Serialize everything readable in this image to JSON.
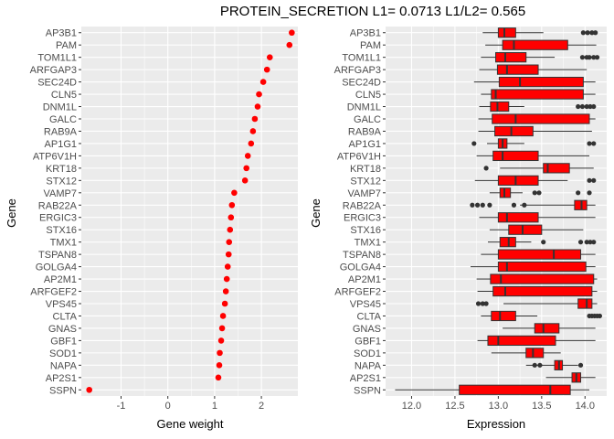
{
  "title": "PROTEIN_SECRETION L1= 0.0713 L1/L2= 0.565",
  "colors": {
    "panel": "#ebebeb",
    "grid_major": "#ffffff",
    "point": "#ff0000",
    "box_fill": "#ff0000",
    "line": "#333333",
    "outlier": "#333333"
  },
  "chart_data": [
    {
      "type": "scatter",
      "xlabel": "Gene weight",
      "ylabel": "Gene",
      "xlim": [
        -1.85,
        2.78
      ],
      "xticks": [
        -1,
        0,
        1,
        2
      ],
      "xtick_labels": [
        "-1",
        "0",
        "1",
        "2"
      ],
      "grid": true,
      "genes": [
        "AP3B1",
        "PAM",
        "TOM1L1",
        "ARFGAP3",
        "SEC24D",
        "CLN5",
        "DNM1L",
        "GALC",
        "RAB9A",
        "AP1G1",
        "ATP6V1H",
        "KRT18",
        "STX12",
        "VAMP7",
        "RAB22A",
        "ERGIC3",
        "STX16",
        "TMX1",
        "TSPAN8",
        "GOLGA4",
        "AP2M1",
        "ARFGEF2",
        "VPS45",
        "CLTA",
        "GNAS",
        "GBF1",
        "SOD1",
        "NAPA",
        "AP2S1",
        "SSPN"
      ],
      "values": [
        2.65,
        2.6,
        2.18,
        2.12,
        2.04,
        1.95,
        1.92,
        1.86,
        1.82,
        1.78,
        1.71,
        1.68,
        1.65,
        1.42,
        1.37,
        1.35,
        1.33,
        1.31,
        1.3,
        1.28,
        1.26,
        1.24,
        1.22,
        1.18,
        1.16,
        1.14,
        1.11,
        1.1,
        1.08,
        -1.68
      ]
    },
    {
      "type": "box",
      "xlabel": "Expression",
      "ylabel": "Gene",
      "xlim": [
        11.7,
        14.25
      ],
      "xticks": [
        12.0,
        12.5,
        13.0,
        13.5,
        14.0
      ],
      "xtick_labels": [
        "12.0",
        "12.5",
        "13.0",
        "13.5",
        "14.0"
      ],
      "grid": true,
      "boxes": [
        {
          "gene": "AP3B1",
          "min": 12.82,
          "q1": 13.0,
          "median": 13.07,
          "q3": 13.2,
          "max": 13.52,
          "outliers": [
            13.98,
            14.03,
            14.08,
            14.12
          ]
        },
        {
          "gene": "PAM",
          "min": 12.85,
          "q1": 13.05,
          "median": 13.18,
          "q3": 13.8,
          "max": 14.13,
          "outliers": []
        },
        {
          "gene": "TOM1L1",
          "min": 12.8,
          "q1": 12.97,
          "median": 13.08,
          "q3": 13.32,
          "max": 13.65,
          "outliers": [
            13.97,
            14.02,
            14.05,
            14.1,
            14.14
          ]
        },
        {
          "gene": "ARFGAP3",
          "min": 12.78,
          "q1": 12.99,
          "median": 13.1,
          "q3": 13.46,
          "max": 14.02,
          "outliers": []
        },
        {
          "gene": "SEC24D",
          "min": 12.72,
          "q1": 13.01,
          "median": 13.25,
          "q3": 13.98,
          "max": 14.12,
          "outliers": []
        },
        {
          "gene": "CLN5",
          "min": 12.8,
          "q1": 12.92,
          "median": 12.97,
          "q3": 13.98,
          "max": 14.12,
          "outliers": []
        },
        {
          "gene": "DNM1L",
          "min": 12.78,
          "q1": 12.91,
          "median": 12.99,
          "q3": 13.12,
          "max": 13.3,
          "outliers": [
            13.92,
            13.97,
            14.02,
            14.06,
            14.1
          ]
        },
        {
          "gene": "GALC",
          "min": 12.77,
          "q1": 12.93,
          "median": 13.2,
          "q3": 14.05,
          "max": 14.12,
          "outliers": []
        },
        {
          "gene": "RAB9A",
          "min": 12.77,
          "q1": 12.96,
          "median": 13.15,
          "q3": 13.4,
          "max": 14.08,
          "outliers": []
        },
        {
          "gene": "AP1G1",
          "min": 12.87,
          "q1": 13.0,
          "median": 13.05,
          "q3": 13.1,
          "max": 13.3,
          "outliers": [
            12.72,
            14.05,
            14.1
          ]
        },
        {
          "gene": "ATP6V1H",
          "min": 12.75,
          "q1": 12.94,
          "median": 13.05,
          "q3": 13.46,
          "max": 14.05,
          "outliers": []
        },
        {
          "gene": "KRT18",
          "min": 13.02,
          "q1": 13.52,
          "median": 13.57,
          "q3": 13.82,
          "max": 14.1,
          "outliers": [
            12.86
          ]
        },
        {
          "gene": "STX12",
          "min": 12.73,
          "q1": 13.0,
          "median": 13.2,
          "q3": 13.46,
          "max": 13.8,
          "outliers": [
            14.05,
            14.1
          ]
        },
        {
          "gene": "VAMP7",
          "min": 12.9,
          "q1": 13.02,
          "median": 13.07,
          "q3": 13.14,
          "max": 13.28,
          "outliers": [
            13.42,
            13.47,
            13.92,
            14.05
          ]
        },
        {
          "gene": "RAB22A",
          "min": 13.25,
          "q1": 13.88,
          "median": 13.96,
          "q3": 14.02,
          "max": 14.12,
          "outliers": [
            12.7,
            12.76,
            12.82,
            12.9,
            13.18,
            13.3
          ]
        },
        {
          "gene": "ERGIC3",
          "min": 12.78,
          "q1": 13.0,
          "median": 13.1,
          "q3": 13.46,
          "max": 14.12,
          "outliers": []
        },
        {
          "gene": "STX16",
          "min": 12.9,
          "q1": 13.12,
          "median": 13.28,
          "q3": 13.5,
          "max": 13.98,
          "outliers": []
        },
        {
          "gene": "TMX1",
          "min": 12.88,
          "q1": 13.02,
          "median": 13.12,
          "q3": 13.2,
          "max": 13.38,
          "outliers": [
            13.52,
            13.95,
            14.02,
            14.06,
            14.1
          ]
        },
        {
          "gene": "TSPAN8",
          "min": 12.8,
          "q1": 13.0,
          "median": 13.64,
          "q3": 13.95,
          "max": 14.12,
          "outliers": []
        },
        {
          "gene": "GOLGA4",
          "min": 12.68,
          "q1": 13.0,
          "median": 13.1,
          "q3": 14.01,
          "max": 14.12,
          "outliers": []
        },
        {
          "gene": "AP2M1",
          "min": 12.75,
          "q1": 12.91,
          "median": 13.03,
          "q3": 14.1,
          "max": 14.14,
          "outliers": []
        },
        {
          "gene": "ARFGEF2",
          "min": 12.76,
          "q1": 12.94,
          "median": 13.08,
          "q3": 14.08,
          "max": 14.14,
          "outliers": []
        },
        {
          "gene": "VPS45",
          "min": 13.06,
          "q1": 13.92,
          "median": 14.02,
          "q3": 14.08,
          "max": 14.14,
          "outliers": [
            12.77,
            12.82,
            12.86
          ]
        },
        {
          "gene": "CLTA",
          "min": 12.8,
          "q1": 12.92,
          "median": 13.02,
          "q3": 13.2,
          "max": 13.45,
          "outliers": [
            14.05,
            14.08,
            14.11,
            14.14,
            14.17
          ]
        },
        {
          "gene": "GNAS",
          "min": 13.05,
          "q1": 13.42,
          "median": 13.52,
          "q3": 13.7,
          "max": 14.12,
          "outliers": []
        },
        {
          "gene": "GBF1",
          "min": 12.76,
          "q1": 12.88,
          "median": 13.0,
          "q3": 13.66,
          "max": 14.12,
          "outliers": []
        },
        {
          "gene": "SOD1",
          "min": 12.92,
          "q1": 13.32,
          "median": 13.4,
          "q3": 13.52,
          "max": 13.72,
          "outliers": []
        },
        {
          "gene": "NAPA",
          "min": 13.32,
          "q1": 13.65,
          "median": 13.7,
          "q3": 13.74,
          "max": 13.92,
          "outliers": [
            13.42,
            13.48,
            13.95
          ]
        },
        {
          "gene": "AP2S1",
          "min": 13.55,
          "q1": 13.85,
          "median": 13.9,
          "q3": 13.95,
          "max": 14.12,
          "outliers": []
        },
        {
          "gene": "SSPN",
          "min": 11.81,
          "q1": 12.55,
          "median": 13.6,
          "q3": 13.83,
          "max": 14.05,
          "outliers": []
        }
      ]
    }
  ]
}
